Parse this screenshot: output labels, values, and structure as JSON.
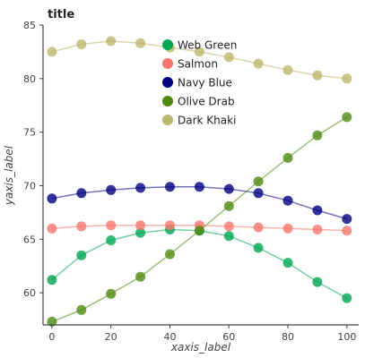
{
  "chart_data": {
    "type": "line",
    "title": "title",
    "xlabel": "xaxis_label",
    "ylabel": "yaxis_label",
    "xlim": [
      -3,
      104
    ],
    "ylim": [
      57,
      85
    ],
    "x": [
      0,
      10,
      20,
      30,
      40,
      50,
      60,
      70,
      80,
      90,
      100
    ],
    "x_ticks": [
      0,
      20,
      40,
      60,
      80,
      100
    ],
    "y_ticks": [
      60,
      65,
      70,
      75,
      80,
      85
    ],
    "grid": false,
    "legend_position": "top-left",
    "series": [
      {
        "name": "Web Green",
        "color": "#00a651",
        "values": [
          61.2,
          63.5,
          64.9,
          65.6,
          65.9,
          65.8,
          65.3,
          64.2,
          62.8,
          61.0,
          59.5
        ]
      },
      {
        "name": "Salmon",
        "color": "#f8766d",
        "values": [
          66.0,
          66.2,
          66.3,
          66.3,
          66.3,
          66.3,
          66.2,
          66.1,
          66.0,
          65.9,
          65.8
        ]
      },
      {
        "name": "Navy Blue",
        "color": "#000080",
        "values": [
          68.8,
          69.3,
          69.6,
          69.8,
          69.9,
          69.9,
          69.7,
          69.3,
          68.6,
          67.7,
          66.9
        ]
      },
      {
        "name": "Olive Drab",
        "color": "#4f8a10",
        "values": [
          57.3,
          58.4,
          59.9,
          61.5,
          63.6,
          65.8,
          68.1,
          70.4,
          72.6,
          74.7,
          76.4
        ]
      },
      {
        "name": "Dark Khaki",
        "color": "#bdb76b",
        "values": [
          82.5,
          83.2,
          83.5,
          83.3,
          82.9,
          82.5,
          82.0,
          81.4,
          80.8,
          80.3,
          80.0
        ]
      }
    ]
  }
}
